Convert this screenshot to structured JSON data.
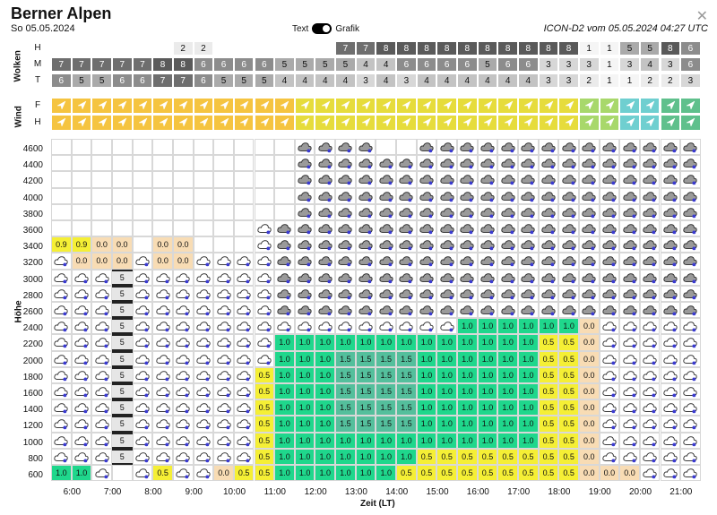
{
  "header": {
    "title": "Berner Alpen",
    "date": "So 05.05.2024",
    "toggle_text": "Text",
    "toggle_graphic": "Grafik",
    "model": "ICON-D2 vom 05.05.2024 04:27 UTC"
  },
  "labels": {
    "clouds": "Wolken",
    "wind": "Wind",
    "height": "Höhe",
    "time": "Zeit (LT)"
  },
  "cloud_rows": [
    {
      "label": "H",
      "values": [
        "",
        "",
        "",
        "",
        "",
        "",
        "2",
        "2",
        "",
        "",
        "",
        "",
        "",
        "",
        "7",
        "7",
        "8",
        "8",
        "8",
        "8",
        "8",
        "8",
        "8",
        "8",
        "8",
        "8",
        "1",
        "1",
        "5",
        "5",
        "8",
        "6"
      ]
    },
    {
      "label": "M",
      "values": [
        "7",
        "7",
        "7",
        "7",
        "7",
        "8",
        "8",
        "6",
        "6",
        "6",
        "6",
        "5",
        "5",
        "5",
        "5",
        "4",
        "4",
        "6",
        "6",
        "6",
        "6",
        "5",
        "6",
        "6",
        "3",
        "3",
        "3",
        "1",
        "3",
        "4",
        "3",
        "6"
      ]
    },
    {
      "label": "T",
      "values": [
        "6",
        "5",
        "5",
        "6",
        "6",
        "7",
        "7",
        "6",
        "5",
        "5",
        "5",
        "4",
        "4",
        "4",
        "4",
        "3",
        "4",
        "3",
        "4",
        "4",
        "4",
        "4",
        "4",
        "4",
        "3",
        "3",
        "2",
        "1",
        "1",
        "2",
        "2",
        "3"
      ]
    }
  ],
  "wind_rows": [
    {
      "label": "F"
    },
    {
      "label": "H"
    }
  ],
  "y_ticks": [
    "4600",
    "4400",
    "4200",
    "4000",
    "3800",
    "3600",
    "3400",
    "3200",
    "3000",
    "2800",
    "2600",
    "2400",
    "2200",
    "2000",
    "1800",
    "1600",
    "1400",
    "1200",
    "1000",
    "800",
    "600"
  ],
  "x_ticks": [
    "6:00",
    "7:00",
    "8:00",
    "9:00",
    "10:00",
    "11:00",
    "12:00",
    "13:00",
    "14:00",
    "15:00",
    "16:00",
    "17:00",
    "18:00",
    "19:00",
    "20:00",
    "21:00"
  ],
  "thermal_top_row": [
    "0.9",
    "0.9",
    "0.0",
    "0.0",
    "",
    "0.0",
    "0.0"
  ],
  "thermal_row2": [
    "",
    "0.0",
    "0.0",
    "0.0",
    "",
    "0.0",
    "0.0"
  ],
  "bottom_row": [
    "1.0",
    "1.0",
    "",
    "",
    "",
    "0.5",
    "",
    "",
    "0.0",
    "0.5",
    "0.5",
    "1.0",
    "1.0",
    "1.0",
    "1.0",
    "1.0",
    "1.0",
    "0.5",
    "0.5",
    "0.5",
    "0.5",
    "0.5",
    "0.5",
    "0.5",
    "0.5",
    "0.5",
    "0.0",
    "0.0",
    "0.0"
  ],
  "colors": {
    "green": "#1fd78c",
    "teal": "#54bf9c",
    "yellow": "#f5ef35",
    "peach": "#f8dcb4",
    "cloud_high": "#4a4a4a"
  }
}
